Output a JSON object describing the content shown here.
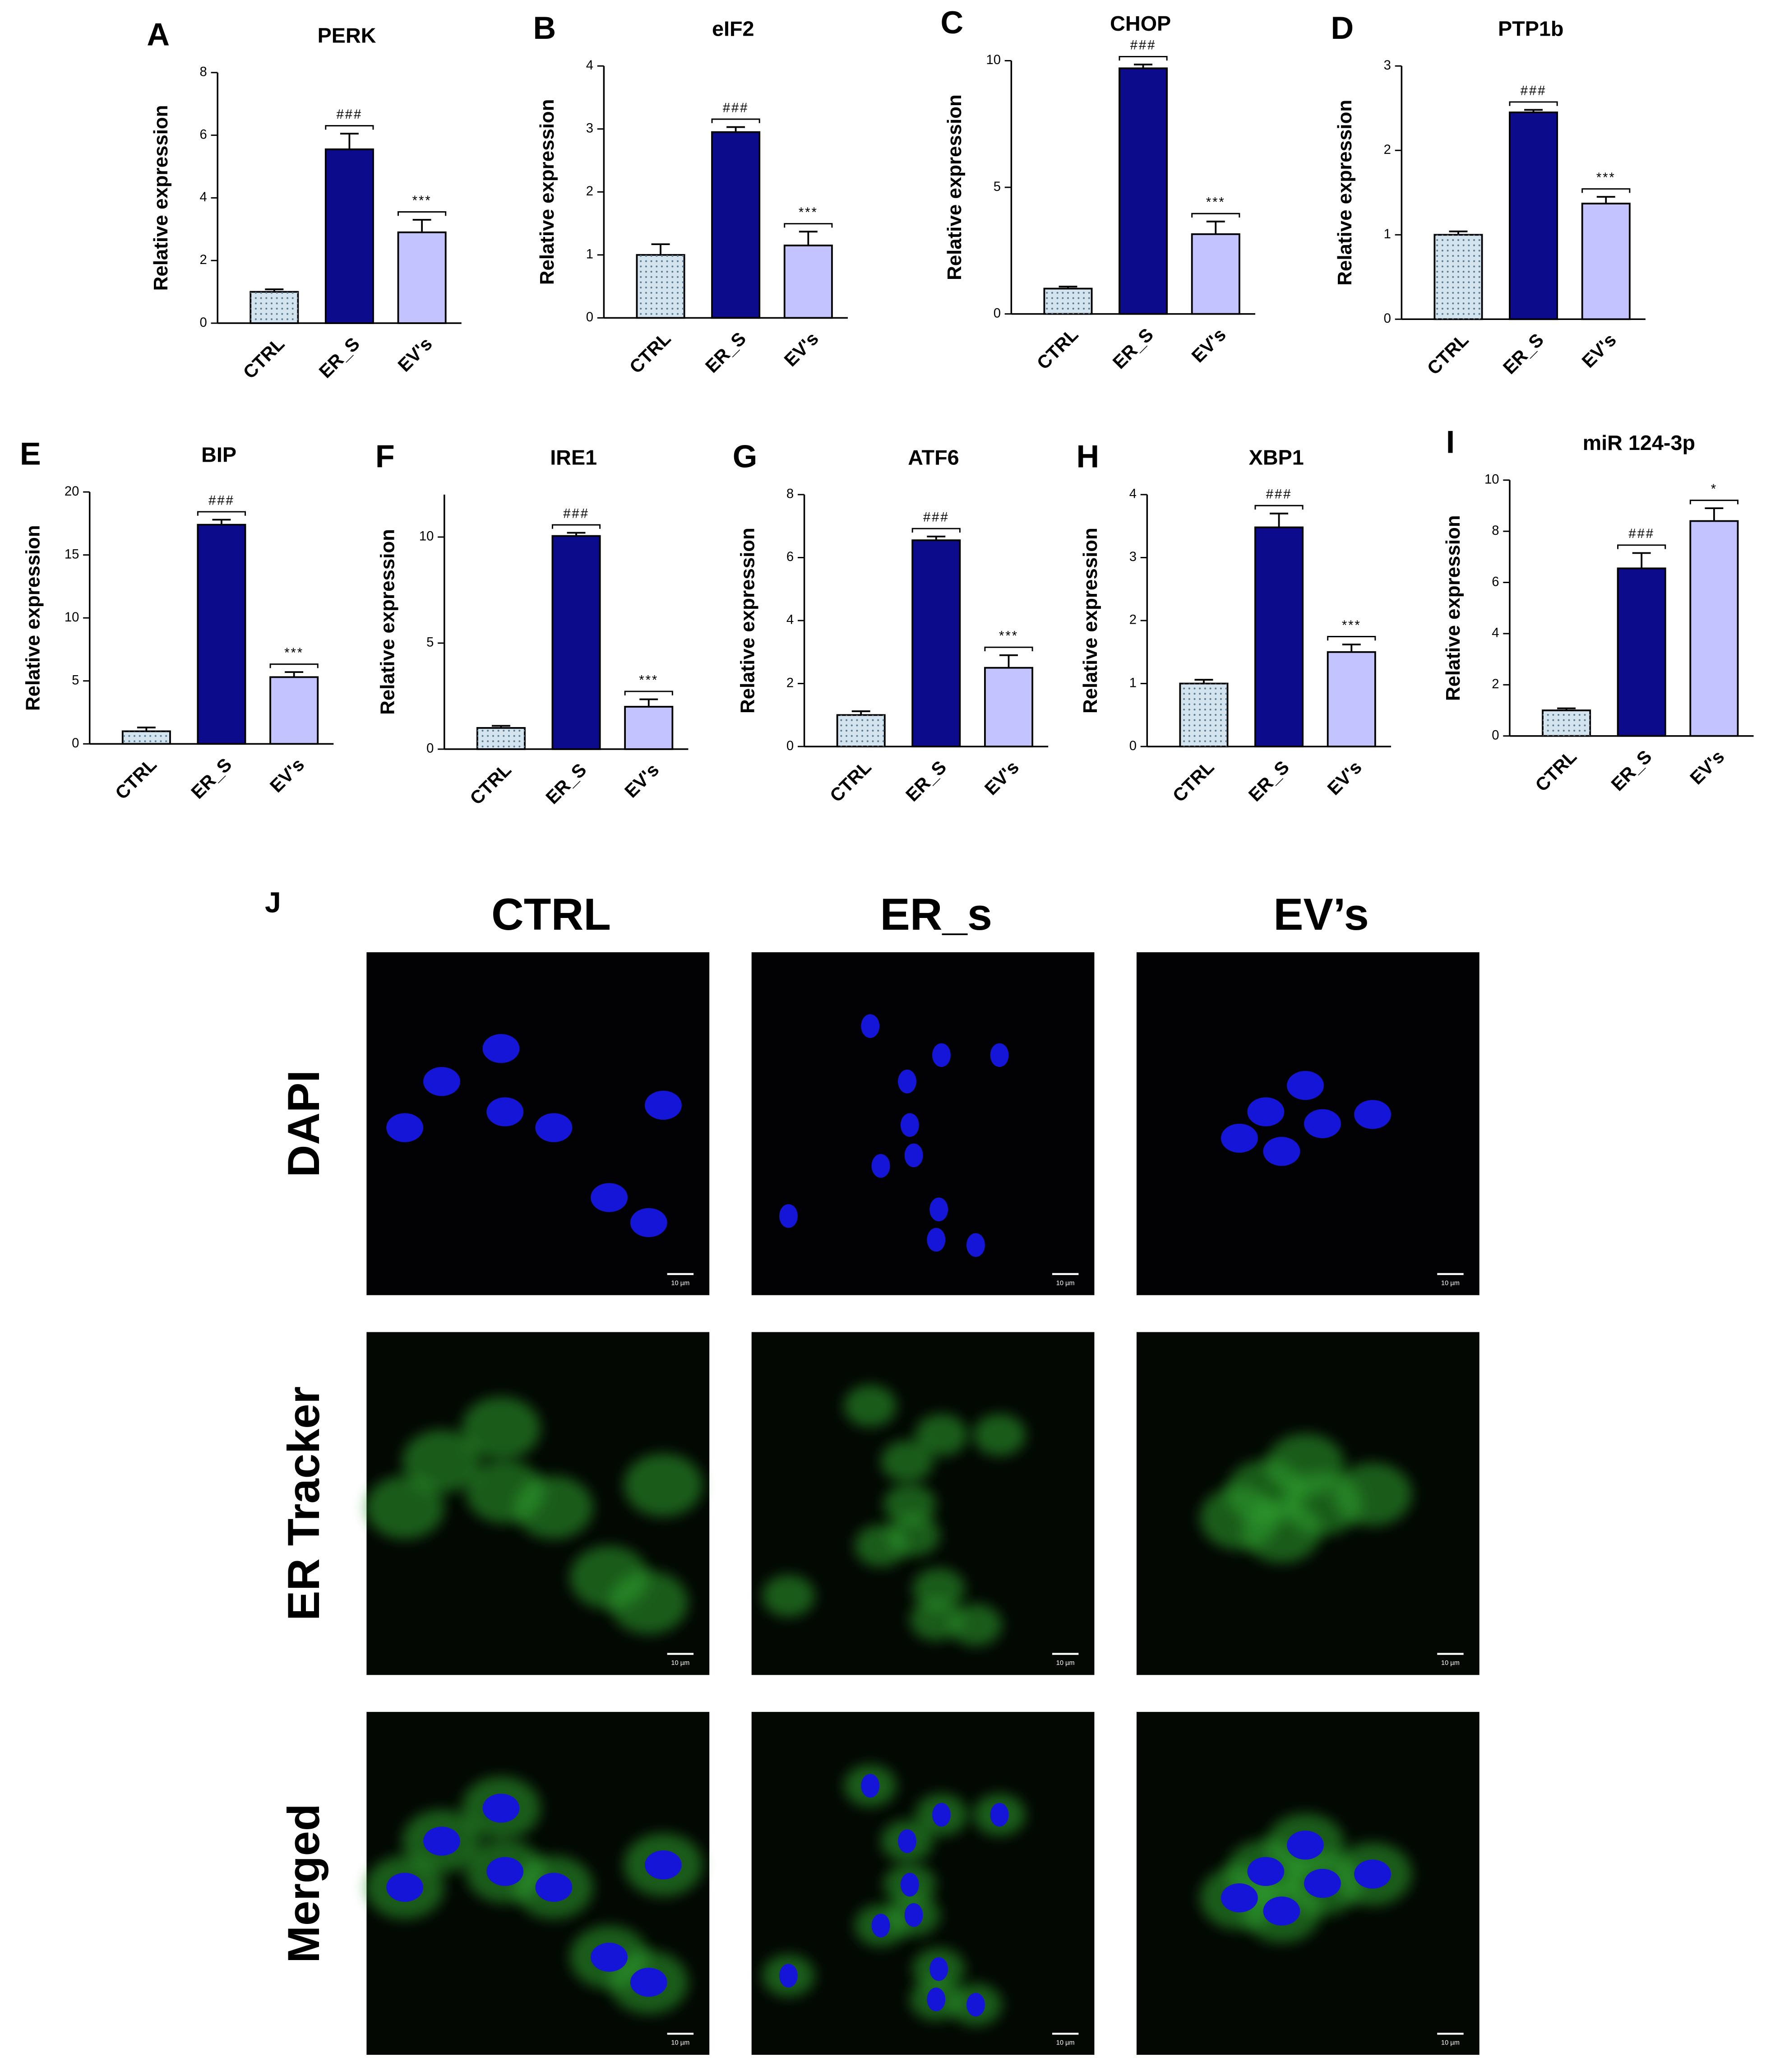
{
  "chart_data": [
    {
      "type": "bar",
      "panel": "A",
      "title": "PERK",
      "ylabel": "Relative expression",
      "categories": [
        "CTRL",
        "ER_S",
        "EV's"
      ],
      "values": [
        1,
        5.55,
        2.9
      ],
      "errors": [
        0.08,
        0.5,
        0.4
      ],
      "significance": [
        null,
        "###",
        "***"
      ],
      "colors": [
        "#d3e4ee",
        "#0b0b8c",
        "#c3c3ff"
      ],
      "ylim": [
        0,
        8
      ],
      "yticks": [
        0,
        2,
        4,
        6,
        8
      ]
    },
    {
      "type": "bar",
      "panel": "B",
      "title": "eIF2",
      "ylabel": "Relative expression",
      "categories": [
        "CTRL",
        "ER_S",
        "EV's"
      ],
      "values": [
        1,
        2.95,
        1.15
      ],
      "errors": [
        0.17,
        0.08,
        0.22
      ],
      "significance": [
        null,
        "###",
        "***"
      ],
      "colors": [
        "#d3e4ee",
        "#0b0b8c",
        "#c3c3ff"
      ],
      "ylim": [
        0,
        4
      ],
      "yticks": [
        0,
        1,
        2,
        3,
        4
      ]
    },
    {
      "type": "bar",
      "panel": "C",
      "title": "CHOP",
      "ylabel": "Relative expression",
      "categories": [
        "CTRL",
        "ER_S",
        "EV's"
      ],
      "values": [
        1,
        9.7,
        3.15
      ],
      "errors": [
        0.08,
        0.15,
        0.5
      ],
      "significance": [
        null,
        "###",
        "***"
      ],
      "colors": [
        "#d3e4ee",
        "#0b0b8c",
        "#c3c3ff"
      ],
      "ylim": [
        0,
        10
      ],
      "yticks": [
        0,
        5,
        10
      ]
    },
    {
      "type": "bar",
      "panel": "D",
      "title": "PTP1b",
      "ylabel": "Relative expression",
      "categories": [
        "CTRL",
        "ER_S",
        "EV's"
      ],
      "values": [
        1,
        2.45,
        1.37
      ],
      "errors": [
        0.04,
        0.03,
        0.08
      ],
      "significance": [
        null,
        "###",
        "***"
      ],
      "colors": [
        "#d3e4ee",
        "#0b0b8c",
        "#c3c3ff"
      ],
      "ylim": [
        0,
        3
      ],
      "yticks": [
        0,
        1,
        2,
        3
      ]
    },
    {
      "type": "bar",
      "panel": "E",
      "title": "BIP",
      "ylabel": "Relative expression",
      "categories": [
        "CTRL",
        "ER_S",
        "EV's"
      ],
      "values": [
        1,
        17.4,
        5.3
      ],
      "errors": [
        0.3,
        0.4,
        0.4
      ],
      "significance": [
        null,
        "###",
        "***"
      ],
      "colors": [
        "#d3e4ee",
        "#0b0b8c",
        "#c3c3ff"
      ],
      "ylim": [
        0,
        20
      ],
      "yticks": [
        0,
        5,
        10,
        15,
        20
      ]
    },
    {
      "type": "bar",
      "panel": "F",
      "title": "IRE1",
      "ylabel": "Relative expression",
      "categories": [
        "CTRL",
        "ER_S",
        "EV's"
      ],
      "values": [
        1,
        10.05,
        2.0
      ],
      "errors": [
        0.1,
        0.15,
        0.35
      ],
      "significance": [
        null,
        "###",
        "***"
      ],
      "colors": [
        "#d3e4ee",
        "#0b0b8c",
        "#c3c3ff"
      ],
      "ylim": [
        0,
        12
      ],
      "yticks": [
        0,
        5,
        10
      ]
    },
    {
      "type": "bar",
      "panel": "G",
      "title": "ATF6",
      "ylabel": "Relative expression",
      "categories": [
        "CTRL",
        "ER_S",
        "EV's"
      ],
      "values": [
        1,
        6.55,
        2.5
      ],
      "errors": [
        0.12,
        0.12,
        0.4
      ],
      "significance": [
        null,
        "###",
        "***"
      ],
      "colors": [
        "#d3e4ee",
        "#0b0b8c",
        "#c3c3ff"
      ],
      "ylim": [
        0,
        8
      ],
      "yticks": [
        0,
        2,
        4,
        6,
        8
      ]
    },
    {
      "type": "bar",
      "panel": "H",
      "title": "XBP1",
      "ylabel": "Relative expression",
      "categories": [
        "CTRL",
        "ER_S",
        "EV's"
      ],
      "values": [
        1,
        3.48,
        1.5
      ],
      "errors": [
        0.06,
        0.22,
        0.12
      ],
      "significance": [
        null,
        "###",
        "***"
      ],
      "colors": [
        "#d3e4ee",
        "#0b0b8c",
        "#c3c3ff"
      ],
      "ylim": [
        0,
        4
      ],
      "yticks": [
        0,
        1,
        2,
        3,
        4
      ]
    },
    {
      "type": "bar",
      "panel": "I",
      "title": "miR 124-3p",
      "ylabel": "Relative expression",
      "categories": [
        "CTRL",
        "ER_S",
        "EV's"
      ],
      "values": [
        1,
        6.55,
        8.4
      ],
      "errors": [
        0.08,
        0.6,
        0.5
      ],
      "significance": [
        null,
        "###",
        "*"
      ],
      "colors": [
        "#d3e4ee",
        "#0b0b8c",
        "#c3c3ff"
      ],
      "ylim": [
        0,
        10
      ],
      "yticks": [
        0,
        2,
        4,
        6,
        8,
        10
      ]
    }
  ],
  "image_panel": {
    "panel": "J",
    "columns": [
      "CTRL",
      "ER_s",
      "EV’s"
    ],
    "rows": [
      "DAPI",
      "ER Tracker",
      "Merged"
    ],
    "scale_bar": "10 µm"
  }
}
